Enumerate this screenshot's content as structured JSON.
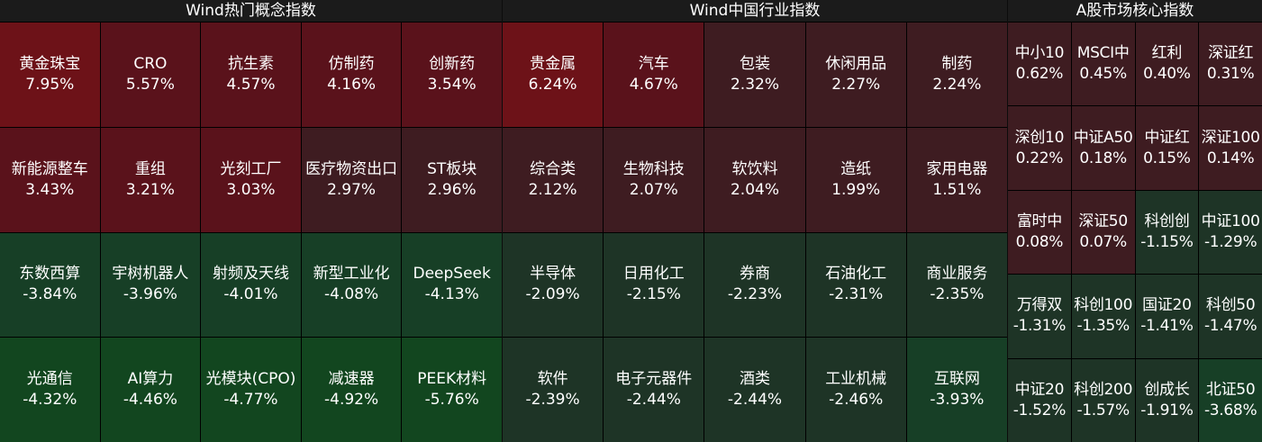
{
  "colors": {
    "up_strong": "#6d1218",
    "up_medium": "#5a121b",
    "up_weak": "#3e1c21",
    "down_weak": "#1e3426",
    "down_medium": "#173f26",
    "down_strong": "#12461f",
    "divider": "#000000"
  },
  "panels": [
    {
      "id": "concept",
      "title": "Wind热门概念指数",
      "tiles": [
        {
          "name": "黄金珠宝",
          "pct": "7.95%",
          "tone": "up_strong"
        },
        {
          "name": "CRO",
          "pct": "5.57%",
          "tone": "up_medium"
        },
        {
          "name": "抗生素",
          "pct": "4.57%",
          "tone": "up_medium"
        },
        {
          "name": "仿制药",
          "pct": "4.16%",
          "tone": "up_medium"
        },
        {
          "name": "创新药",
          "pct": "3.54%",
          "tone": "up_medium"
        },
        {
          "name": "新能源整车",
          "pct": "3.43%",
          "tone": "up_medium"
        },
        {
          "name": "重组",
          "pct": "3.21%",
          "tone": "up_medium"
        },
        {
          "name": "光刻工厂",
          "pct": "3.03%",
          "tone": "up_medium"
        },
        {
          "name": "医疗物资出口",
          "pct": "2.97%",
          "tone": "up_weak"
        },
        {
          "name": "ST板块",
          "pct": "2.96%",
          "tone": "up_weak"
        },
        {
          "name": "东数西算",
          "pct": "-3.84%",
          "tone": "down_medium"
        },
        {
          "name": "宇树机器人",
          "pct": "-3.96%",
          "tone": "down_medium"
        },
        {
          "name": "射频及天线",
          "pct": "-4.01%",
          "tone": "down_medium"
        },
        {
          "name": "新型工业化",
          "pct": "-4.08%",
          "tone": "down_medium"
        },
        {
          "name": "DeepSeek",
          "pct": "-4.13%",
          "tone": "down_medium"
        },
        {
          "name": "光通信",
          "pct": "-4.32%",
          "tone": "down_strong"
        },
        {
          "name": "AI算力",
          "pct": "-4.46%",
          "tone": "down_strong"
        },
        {
          "name": "光模块(CPO)",
          "pct": "-4.77%",
          "tone": "down_strong"
        },
        {
          "name": "减速器",
          "pct": "-4.92%",
          "tone": "down_strong"
        },
        {
          "name": "PEEK材料",
          "pct": "-5.76%",
          "tone": "down_strong"
        }
      ]
    },
    {
      "id": "industry",
      "title": "Wind中国行业指数",
      "tiles": [
        {
          "name": "贵金属",
          "pct": "6.24%",
          "tone": "up_strong"
        },
        {
          "name": "汽车",
          "pct": "4.67%",
          "tone": "up_medium"
        },
        {
          "name": "包装",
          "pct": "2.32%",
          "tone": "up_weak"
        },
        {
          "name": "休闲用品",
          "pct": "2.27%",
          "tone": "up_weak"
        },
        {
          "name": "制药",
          "pct": "2.24%",
          "tone": "up_weak"
        },
        {
          "name": "综合类",
          "pct": "2.12%",
          "tone": "up_weak"
        },
        {
          "name": "生物科技",
          "pct": "2.07%",
          "tone": "up_weak"
        },
        {
          "name": "软饮料",
          "pct": "2.04%",
          "tone": "up_weak"
        },
        {
          "name": "造纸",
          "pct": "1.99%",
          "tone": "up_weak"
        },
        {
          "name": "家用电器",
          "pct": "1.51%",
          "tone": "up_weak"
        },
        {
          "name": "半导体",
          "pct": "-2.09%",
          "tone": "down_weak"
        },
        {
          "name": "日用化工",
          "pct": "-2.15%",
          "tone": "down_weak"
        },
        {
          "name": "券商",
          "pct": "-2.23%",
          "tone": "down_weak"
        },
        {
          "name": "石油化工",
          "pct": "-2.31%",
          "tone": "down_weak"
        },
        {
          "name": "商业服务",
          "pct": "-2.35%",
          "tone": "down_weak"
        },
        {
          "name": "软件",
          "pct": "-2.39%",
          "tone": "down_weak"
        },
        {
          "name": "电子元器件",
          "pct": "-2.44%",
          "tone": "down_weak"
        },
        {
          "name": "酒类",
          "pct": "-2.44%",
          "tone": "down_weak"
        },
        {
          "name": "工业机械",
          "pct": "-2.46%",
          "tone": "down_weak"
        },
        {
          "name": "互联网",
          "pct": "-3.93%",
          "tone": "down_medium"
        }
      ]
    },
    {
      "id": "core",
      "title": "A股市场核心指数",
      "tiles": [
        {
          "name": "中小10",
          "pct": "0.62%",
          "tone": "up_weak"
        },
        {
          "name": "MSCI中",
          "pct": "0.45%",
          "tone": "up_weak"
        },
        {
          "name": "红利",
          "pct": "0.40%",
          "tone": "up_weak"
        },
        {
          "name": "深证红",
          "pct": "0.31%",
          "tone": "up_weak"
        },
        {
          "name": "深创10",
          "pct": "0.22%",
          "tone": "up_weak"
        },
        {
          "name": "中证A50",
          "pct": "0.18%",
          "tone": "up_weak"
        },
        {
          "name": "中证红",
          "pct": "0.15%",
          "tone": "up_weak"
        },
        {
          "name": "深证100",
          "pct": "0.14%",
          "tone": "up_weak"
        },
        {
          "name": "富时中",
          "pct": "0.08%",
          "tone": "up_weak"
        },
        {
          "name": "深证50",
          "pct": "0.07%",
          "tone": "up_weak"
        },
        {
          "name": "科创创",
          "pct": "-1.15%",
          "tone": "down_weak"
        },
        {
          "name": "中证100",
          "pct": "-1.29%",
          "tone": "down_weak"
        },
        {
          "name": "万得双",
          "pct": "-1.31%",
          "tone": "down_weak"
        },
        {
          "name": "科创100",
          "pct": "-1.35%",
          "tone": "down_weak"
        },
        {
          "name": "国证20",
          "pct": "-1.41%",
          "tone": "down_weak"
        },
        {
          "name": "科创50",
          "pct": "-1.47%",
          "tone": "down_weak"
        },
        {
          "name": "中证20",
          "pct": "-1.52%",
          "tone": "down_weak"
        },
        {
          "name": "科创200",
          "pct": "-1.57%",
          "tone": "down_weak"
        },
        {
          "name": "创成长",
          "pct": "-1.91%",
          "tone": "down_weak"
        },
        {
          "name": "北证50",
          "pct": "-3.68%",
          "tone": "down_medium"
        }
      ]
    }
  ]
}
